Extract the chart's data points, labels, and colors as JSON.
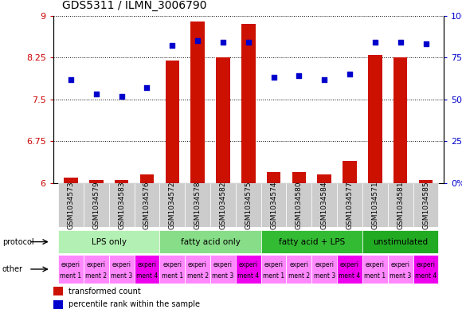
{
  "title": "GDS5311 / ILMN_3006790",
  "samples": [
    "GSM1034573",
    "GSM1034579",
    "GSM1034583",
    "GSM1034576",
    "GSM1034572",
    "GSM1034578",
    "GSM1034582",
    "GSM1034575",
    "GSM1034574",
    "GSM1034580",
    "GSM1034584",
    "GSM1034577",
    "GSM1034571",
    "GSM1034581",
    "GSM1034585"
  ],
  "transformed_count": [
    6.1,
    6.05,
    6.05,
    6.15,
    8.2,
    8.9,
    8.25,
    8.85,
    6.2,
    6.2,
    6.15,
    6.4,
    8.3,
    8.25,
    6.05
  ],
  "percentile_rank": [
    62,
    53,
    52,
    57,
    82,
    85,
    84,
    84,
    63,
    64,
    62,
    65,
    84,
    84,
    83
  ],
  "ylim_left": [
    6,
    9
  ],
  "ylim_right": [
    0,
    100
  ],
  "yticks_left": [
    6,
    6.75,
    7.5,
    8.25,
    9
  ],
  "yticks_right": [
    0,
    25,
    50,
    75,
    100
  ],
  "protocol_groups": [
    {
      "label": "LPS only",
      "start": 0,
      "end": 4,
      "color": "#b3f0b3"
    },
    {
      "label": "fatty acid only",
      "start": 4,
      "end": 8,
      "color": "#88dd88"
    },
    {
      "label": "fatty acid + LPS",
      "start": 8,
      "end": 12,
      "color": "#33bb33"
    },
    {
      "label": "unstimulated",
      "start": 12,
      "end": 15,
      "color": "#22aa22"
    }
  ],
  "other_labels": [
    "experiment 1",
    "experiment 2",
    "experiment 3",
    "experiment 4",
    "experiment 1",
    "experiment 2",
    "experiment 3",
    "experiment 4",
    "experiment 1",
    "experiment 2",
    "experiment 3",
    "experiment 4",
    "experiment 1",
    "experiment 3",
    "experiment 4"
  ],
  "other_colors_normal": "#ff88ff",
  "other_colors_highlight": "#ee00ee",
  "other_highlight_indices": [
    3,
    7,
    11,
    14
  ],
  "bar_color": "#cc1100",
  "dot_color": "#0000cc",
  "bg_color": "#ffffff",
  "plot_bg_color": "#ffffff",
  "label_color_left": "#cc0000",
  "label_color_right": "#0000cc",
  "sample_bg_color": "#cccccc",
  "title_fontsize": 10,
  "bar_width": 0.55
}
